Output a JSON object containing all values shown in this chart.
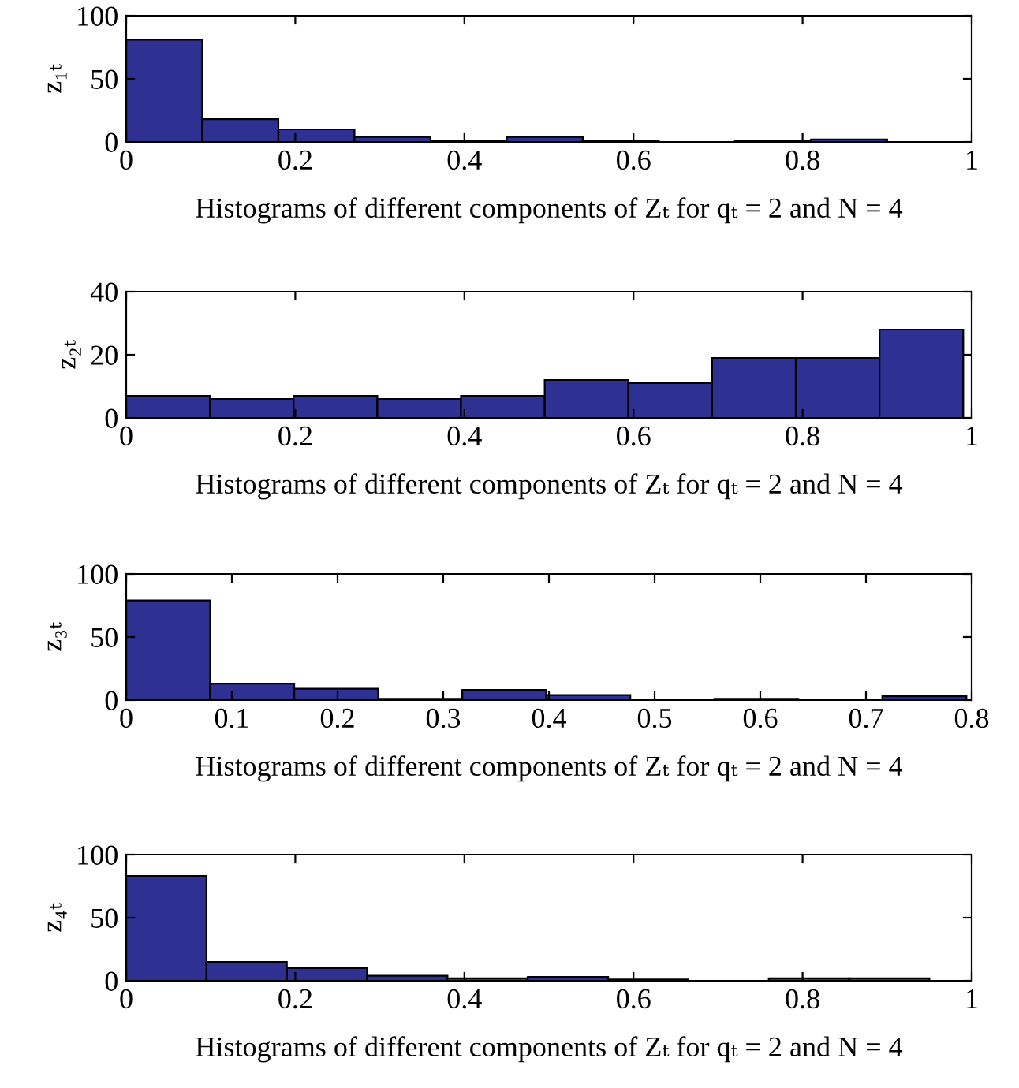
{
  "chart_data": [
    {
      "type": "histogram",
      "bins": [
        0,
        0.09,
        0.18,
        0.27,
        0.36,
        0.45,
        0.54,
        0.63,
        0.72,
        0.81,
        0.9
      ],
      "values": [
        81,
        18,
        10,
        4,
        1,
        4,
        1,
        0,
        1,
        2
      ],
      "color": "#2e3192",
      "xlim": [
        0,
        1
      ],
      "xticks": [
        0,
        0.2,
        0.4,
        0.6,
        0.8,
        1
      ],
      "ylim": [
        0,
        100
      ],
      "yticks": [
        0,
        50,
        100
      ],
      "xlabel": "Histograms of different components of Zₜ for qₜ = 2 and N = 4",
      "ylabel": "z₁ₜ"
    },
    {
      "type": "histogram",
      "bins": [
        0,
        0.099,
        0.198,
        0.297,
        0.396,
        0.495,
        0.594,
        0.693,
        0.792,
        0.891,
        0.99
      ],
      "values": [
        7,
        6,
        7,
        6,
        7,
        12,
        11,
        19,
        19,
        28
      ],
      "color": "#2e3192",
      "xlim": [
        0,
        1
      ],
      "xticks": [
        0,
        0.2,
        0.4,
        0.6,
        0.8,
        1
      ],
      "ylim": [
        0,
        40
      ],
      "yticks": [
        0,
        20,
        40
      ],
      "xlabel": "Histograms of different components of Zₜ for qₜ = 2 and N = 4",
      "ylabel": "z₂ₜ"
    },
    {
      "type": "histogram",
      "bins": [
        0,
        0.0795,
        0.159,
        0.2385,
        0.318,
        0.3975,
        0.477,
        0.5565,
        0.636,
        0.7155,
        0.795
      ],
      "values": [
        79,
        13,
        9,
        1,
        8,
        4,
        0,
        1,
        0,
        3
      ],
      "color": "#2e3192",
      "xlim": [
        0,
        0.8
      ],
      "xticks": [
        0,
        0.1,
        0.2,
        0.3,
        0.4,
        0.5,
        0.6,
        0.7,
        0.8
      ],
      "ylim": [
        0,
        100
      ],
      "yticks": [
        0,
        50,
        100
      ],
      "xlabel": "Histograms of different components of Zₜ for qₜ = 2 and N = 4",
      "ylabel": "z₃ₜ"
    },
    {
      "type": "histogram",
      "bins": [
        0,
        0.095,
        0.19,
        0.285,
        0.38,
        0.475,
        0.57,
        0.665,
        0.76,
        0.855,
        0.95
      ],
      "values": [
        83,
        15,
        10,
        4,
        2,
        3,
        1,
        0,
        2,
        2
      ],
      "color": "#2e3192",
      "xlim": [
        0,
        1
      ],
      "xticks": [
        0,
        0.2,
        0.4,
        0.6,
        0.8,
        1
      ],
      "ylim": [
        0,
        100
      ],
      "yticks": [
        0,
        50,
        100
      ],
      "xlabel": "Histograms of different components of Zₜ for qₜ = 2 and N = 4",
      "ylabel": "z₄ₜ"
    }
  ]
}
